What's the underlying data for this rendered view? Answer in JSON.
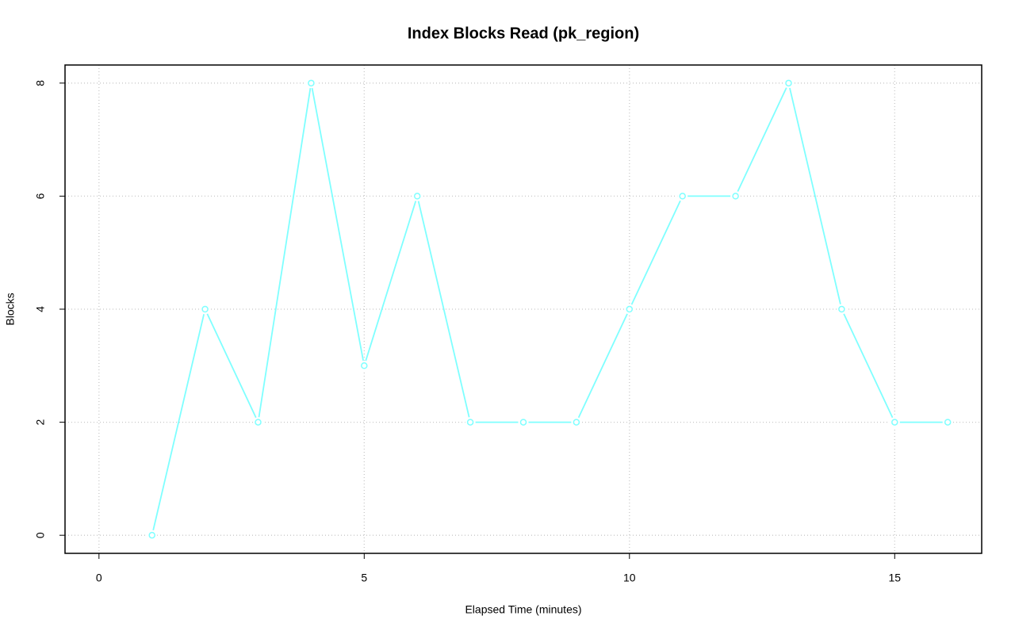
{
  "chart_data": {
    "type": "line",
    "title": "Index Blocks Read (pk_region)",
    "x_label": "Elapsed Time (minutes)",
    "y_label": "Blocks",
    "x": [
      1,
      2,
      3,
      4,
      5,
      6,
      7,
      8,
      9,
      10,
      11,
      12,
      13,
      14,
      15,
      16
    ],
    "series": [
      {
        "name": "Blocks",
        "color": "#7fffff",
        "values": [
          0,
          4,
          2,
          8,
          3,
          6,
          2,
          2,
          2,
          4,
          6,
          6,
          8,
          4,
          2,
          2
        ]
      }
    ],
    "xlim": [
      -0.64,
      16.64
    ],
    "xticks": [
      0,
      5,
      10,
      15
    ],
    "ylim": [
      -0.32,
      8.32
    ],
    "yticks": [
      0,
      2,
      4,
      6,
      8
    ],
    "grid": true
  }
}
